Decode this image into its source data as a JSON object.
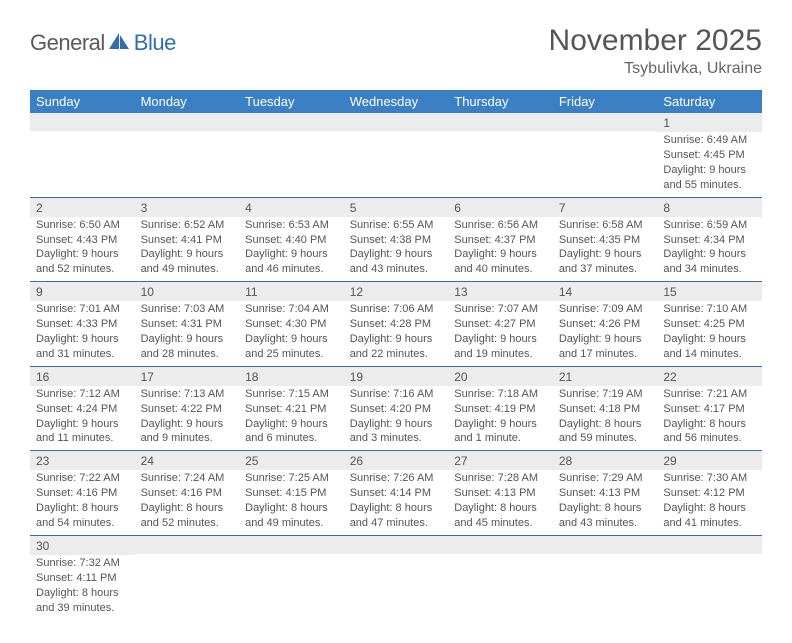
{
  "logo": {
    "part1": "General",
    "part2": "Blue"
  },
  "title": "November 2025",
  "location": "Tsybulivka, Ukraine",
  "colors": {
    "header_bg": "#3b7fc4",
    "header_text": "#ffffff",
    "row_divider": "#2f6fb0",
    "daynum_bg": "#ececec",
    "text": "#555555",
    "logo_blue": "#2f6fb0",
    "logo_gray": "#5a5a5a",
    "page_bg": "#ffffff"
  },
  "weekdays": [
    "Sunday",
    "Monday",
    "Tuesday",
    "Wednesday",
    "Thursday",
    "Friday",
    "Saturday"
  ],
  "weeks": [
    [
      null,
      null,
      null,
      null,
      null,
      null,
      {
        "n": "1",
        "sr": "Sunrise: 6:49 AM",
        "ss": "Sunset: 4:45 PM",
        "dl": "Daylight: 9 hours and 55 minutes."
      }
    ],
    [
      {
        "n": "2",
        "sr": "Sunrise: 6:50 AM",
        "ss": "Sunset: 4:43 PM",
        "dl": "Daylight: 9 hours and 52 minutes."
      },
      {
        "n": "3",
        "sr": "Sunrise: 6:52 AM",
        "ss": "Sunset: 4:41 PM",
        "dl": "Daylight: 9 hours and 49 minutes."
      },
      {
        "n": "4",
        "sr": "Sunrise: 6:53 AM",
        "ss": "Sunset: 4:40 PM",
        "dl": "Daylight: 9 hours and 46 minutes."
      },
      {
        "n": "5",
        "sr": "Sunrise: 6:55 AM",
        "ss": "Sunset: 4:38 PM",
        "dl": "Daylight: 9 hours and 43 minutes."
      },
      {
        "n": "6",
        "sr": "Sunrise: 6:56 AM",
        "ss": "Sunset: 4:37 PM",
        "dl": "Daylight: 9 hours and 40 minutes."
      },
      {
        "n": "7",
        "sr": "Sunrise: 6:58 AM",
        "ss": "Sunset: 4:35 PM",
        "dl": "Daylight: 9 hours and 37 minutes."
      },
      {
        "n": "8",
        "sr": "Sunrise: 6:59 AM",
        "ss": "Sunset: 4:34 PM",
        "dl": "Daylight: 9 hours and 34 minutes."
      }
    ],
    [
      {
        "n": "9",
        "sr": "Sunrise: 7:01 AM",
        "ss": "Sunset: 4:33 PM",
        "dl": "Daylight: 9 hours and 31 minutes."
      },
      {
        "n": "10",
        "sr": "Sunrise: 7:03 AM",
        "ss": "Sunset: 4:31 PM",
        "dl": "Daylight: 9 hours and 28 minutes."
      },
      {
        "n": "11",
        "sr": "Sunrise: 7:04 AM",
        "ss": "Sunset: 4:30 PM",
        "dl": "Daylight: 9 hours and 25 minutes."
      },
      {
        "n": "12",
        "sr": "Sunrise: 7:06 AM",
        "ss": "Sunset: 4:28 PM",
        "dl": "Daylight: 9 hours and 22 minutes."
      },
      {
        "n": "13",
        "sr": "Sunrise: 7:07 AM",
        "ss": "Sunset: 4:27 PM",
        "dl": "Daylight: 9 hours and 19 minutes."
      },
      {
        "n": "14",
        "sr": "Sunrise: 7:09 AM",
        "ss": "Sunset: 4:26 PM",
        "dl": "Daylight: 9 hours and 17 minutes."
      },
      {
        "n": "15",
        "sr": "Sunrise: 7:10 AM",
        "ss": "Sunset: 4:25 PM",
        "dl": "Daylight: 9 hours and 14 minutes."
      }
    ],
    [
      {
        "n": "16",
        "sr": "Sunrise: 7:12 AM",
        "ss": "Sunset: 4:24 PM",
        "dl": "Daylight: 9 hours and 11 minutes."
      },
      {
        "n": "17",
        "sr": "Sunrise: 7:13 AM",
        "ss": "Sunset: 4:22 PM",
        "dl": "Daylight: 9 hours and 9 minutes."
      },
      {
        "n": "18",
        "sr": "Sunrise: 7:15 AM",
        "ss": "Sunset: 4:21 PM",
        "dl": "Daylight: 9 hours and 6 minutes."
      },
      {
        "n": "19",
        "sr": "Sunrise: 7:16 AM",
        "ss": "Sunset: 4:20 PM",
        "dl": "Daylight: 9 hours and 3 minutes."
      },
      {
        "n": "20",
        "sr": "Sunrise: 7:18 AM",
        "ss": "Sunset: 4:19 PM",
        "dl": "Daylight: 9 hours and 1 minute."
      },
      {
        "n": "21",
        "sr": "Sunrise: 7:19 AM",
        "ss": "Sunset: 4:18 PM",
        "dl": "Daylight: 8 hours and 59 minutes."
      },
      {
        "n": "22",
        "sr": "Sunrise: 7:21 AM",
        "ss": "Sunset: 4:17 PM",
        "dl": "Daylight: 8 hours and 56 minutes."
      }
    ],
    [
      {
        "n": "23",
        "sr": "Sunrise: 7:22 AM",
        "ss": "Sunset: 4:16 PM",
        "dl": "Daylight: 8 hours and 54 minutes."
      },
      {
        "n": "24",
        "sr": "Sunrise: 7:24 AM",
        "ss": "Sunset: 4:16 PM",
        "dl": "Daylight: 8 hours and 52 minutes."
      },
      {
        "n": "25",
        "sr": "Sunrise: 7:25 AM",
        "ss": "Sunset: 4:15 PM",
        "dl": "Daylight: 8 hours and 49 minutes."
      },
      {
        "n": "26",
        "sr": "Sunrise: 7:26 AM",
        "ss": "Sunset: 4:14 PM",
        "dl": "Daylight: 8 hours and 47 minutes."
      },
      {
        "n": "27",
        "sr": "Sunrise: 7:28 AM",
        "ss": "Sunset: 4:13 PM",
        "dl": "Daylight: 8 hours and 45 minutes."
      },
      {
        "n": "28",
        "sr": "Sunrise: 7:29 AM",
        "ss": "Sunset: 4:13 PM",
        "dl": "Daylight: 8 hours and 43 minutes."
      },
      {
        "n": "29",
        "sr": "Sunrise: 7:30 AM",
        "ss": "Sunset: 4:12 PM",
        "dl": "Daylight: 8 hours and 41 minutes."
      }
    ],
    [
      {
        "n": "30",
        "sr": "Sunrise: 7:32 AM",
        "ss": "Sunset: 4:11 PM",
        "dl": "Daylight: 8 hours and 39 minutes."
      },
      null,
      null,
      null,
      null,
      null,
      null
    ]
  ]
}
